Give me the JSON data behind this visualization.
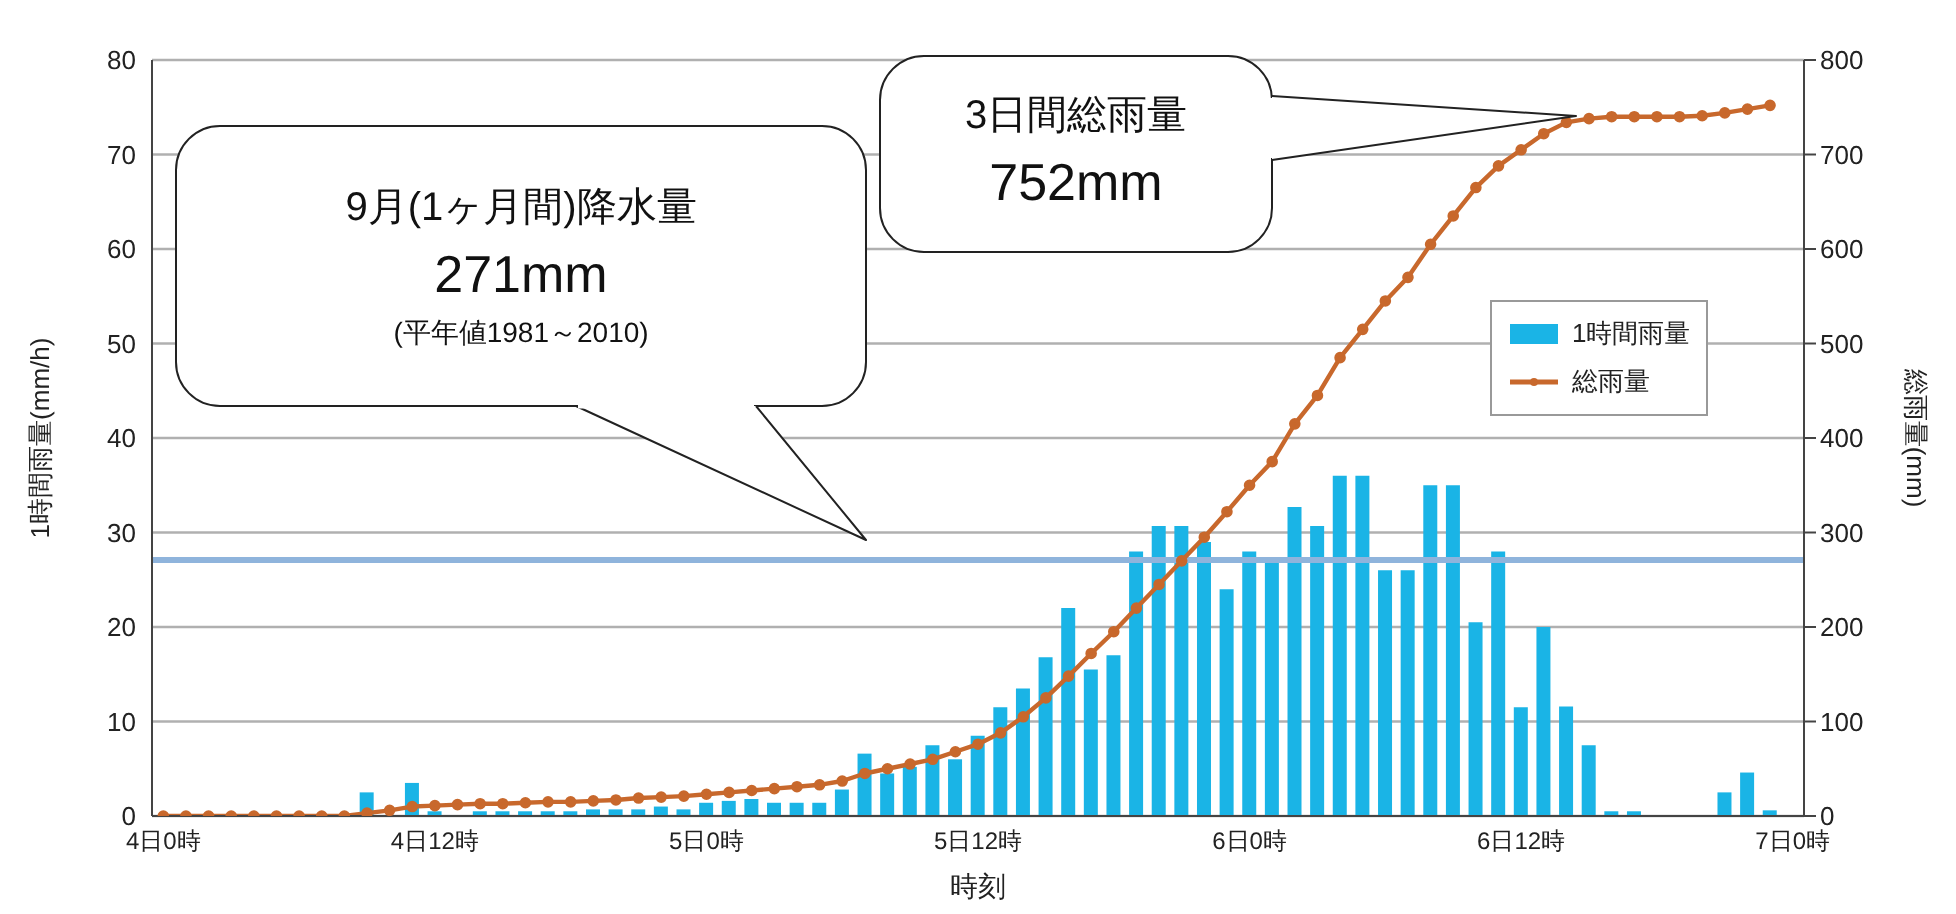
{
  "chart_data": {
    "type": "bar",
    "xlabel": "時刻",
    "ylabel": "1時間雨量(mm/h)",
    "y2label": "総雨量(mm)",
    "categories": [
      "4日0時",
      null,
      null,
      null,
      null,
      null,
      null,
      null,
      null,
      null,
      null,
      null,
      "4日12時",
      null,
      null,
      null,
      null,
      null,
      null,
      null,
      null,
      null,
      null,
      null,
      "5日0時",
      null,
      null,
      null,
      null,
      null,
      null,
      null,
      null,
      null,
      null,
      null,
      "5日12時",
      null,
      null,
      null,
      null,
      null,
      null,
      null,
      null,
      null,
      null,
      null,
      "6日0時",
      null,
      null,
      null,
      null,
      null,
      null,
      null,
      null,
      null,
      null,
      null,
      "6日12時",
      null,
      null,
      null,
      null,
      null,
      null,
      null,
      null,
      null,
      null,
      null,
      "7日0時"
    ],
    "ylim": [
      0,
      80
    ],
    "yticks": [
      0,
      10,
      20,
      30,
      40,
      50,
      60,
      70,
      80
    ],
    "y2lim": [
      0,
      800
    ],
    "y2ticks": [
      0,
      100,
      200,
      300,
      400,
      500,
      600,
      700,
      800
    ],
    "series": [
      {
        "name": "1時間雨量",
        "color": "#1ab4e6",
        "values": [
          0,
          0,
          0,
          0,
          0,
          0,
          0,
          0,
          0,
          2.5,
          0,
          3.5,
          0.5,
          0,
          0.5,
          0.5,
          0.5,
          0.5,
          0.5,
          0.7,
          0.7,
          0.7,
          1,
          0.7,
          1.4,
          1.6,
          1.8,
          1.4,
          1.4,
          1.4,
          2.8,
          6.6,
          4.5,
          5.2,
          7.5,
          6,
          8.5,
          11.5,
          13.5,
          16.8,
          22,
          15.5,
          17,
          28,
          30.7,
          30.7,
          29,
          24,
          28,
          27,
          32.7,
          30.7,
          36,
          36,
          26,
          26,
          35,
          35,
          20.5,
          28,
          11.5,
          20,
          11.6,
          7.5,
          0.5,
          0.5,
          0,
          0,
          0,
          2.5,
          4.6,
          0.6,
          null
        ]
      },
      {
        "name": "総雨量",
        "type": "line",
        "axis": "y2",
        "color": "#c8682c",
        "marker": "circle",
        "values": [
          0,
          0,
          0,
          0,
          0,
          0,
          0,
          0,
          0,
          3,
          6,
          10,
          11,
          12,
          13,
          13,
          14,
          15,
          15,
          16,
          17,
          19,
          20,
          21,
          23,
          25,
          27,
          29,
          31,
          33,
          37,
          45,
          50,
          55,
          60,
          68,
          76,
          88,
          105,
          125,
          148,
          172,
          195,
          220,
          245,
          270,
          295,
          322,
          350,
          375,
          415,
          445,
          485,
          515,
          545,
          570,
          605,
          635,
          665,
          688,
          705,
          722,
          734,
          738,
          740,
          740,
          740,
          740,
          741,
          744,
          748,
          752,
          null
        ]
      }
    ],
    "ref_lines": [
      {
        "axis": "y2",
        "value": 271,
        "color": "#8fb4dc"
      }
    ],
    "annotations": [
      "9月(1ヶ月間)降水量\n271mm\n(平年値1981～2010)",
      "3日間総雨量\n752mm"
    ],
    "grid": "y",
    "legend": "right"
  }
}
